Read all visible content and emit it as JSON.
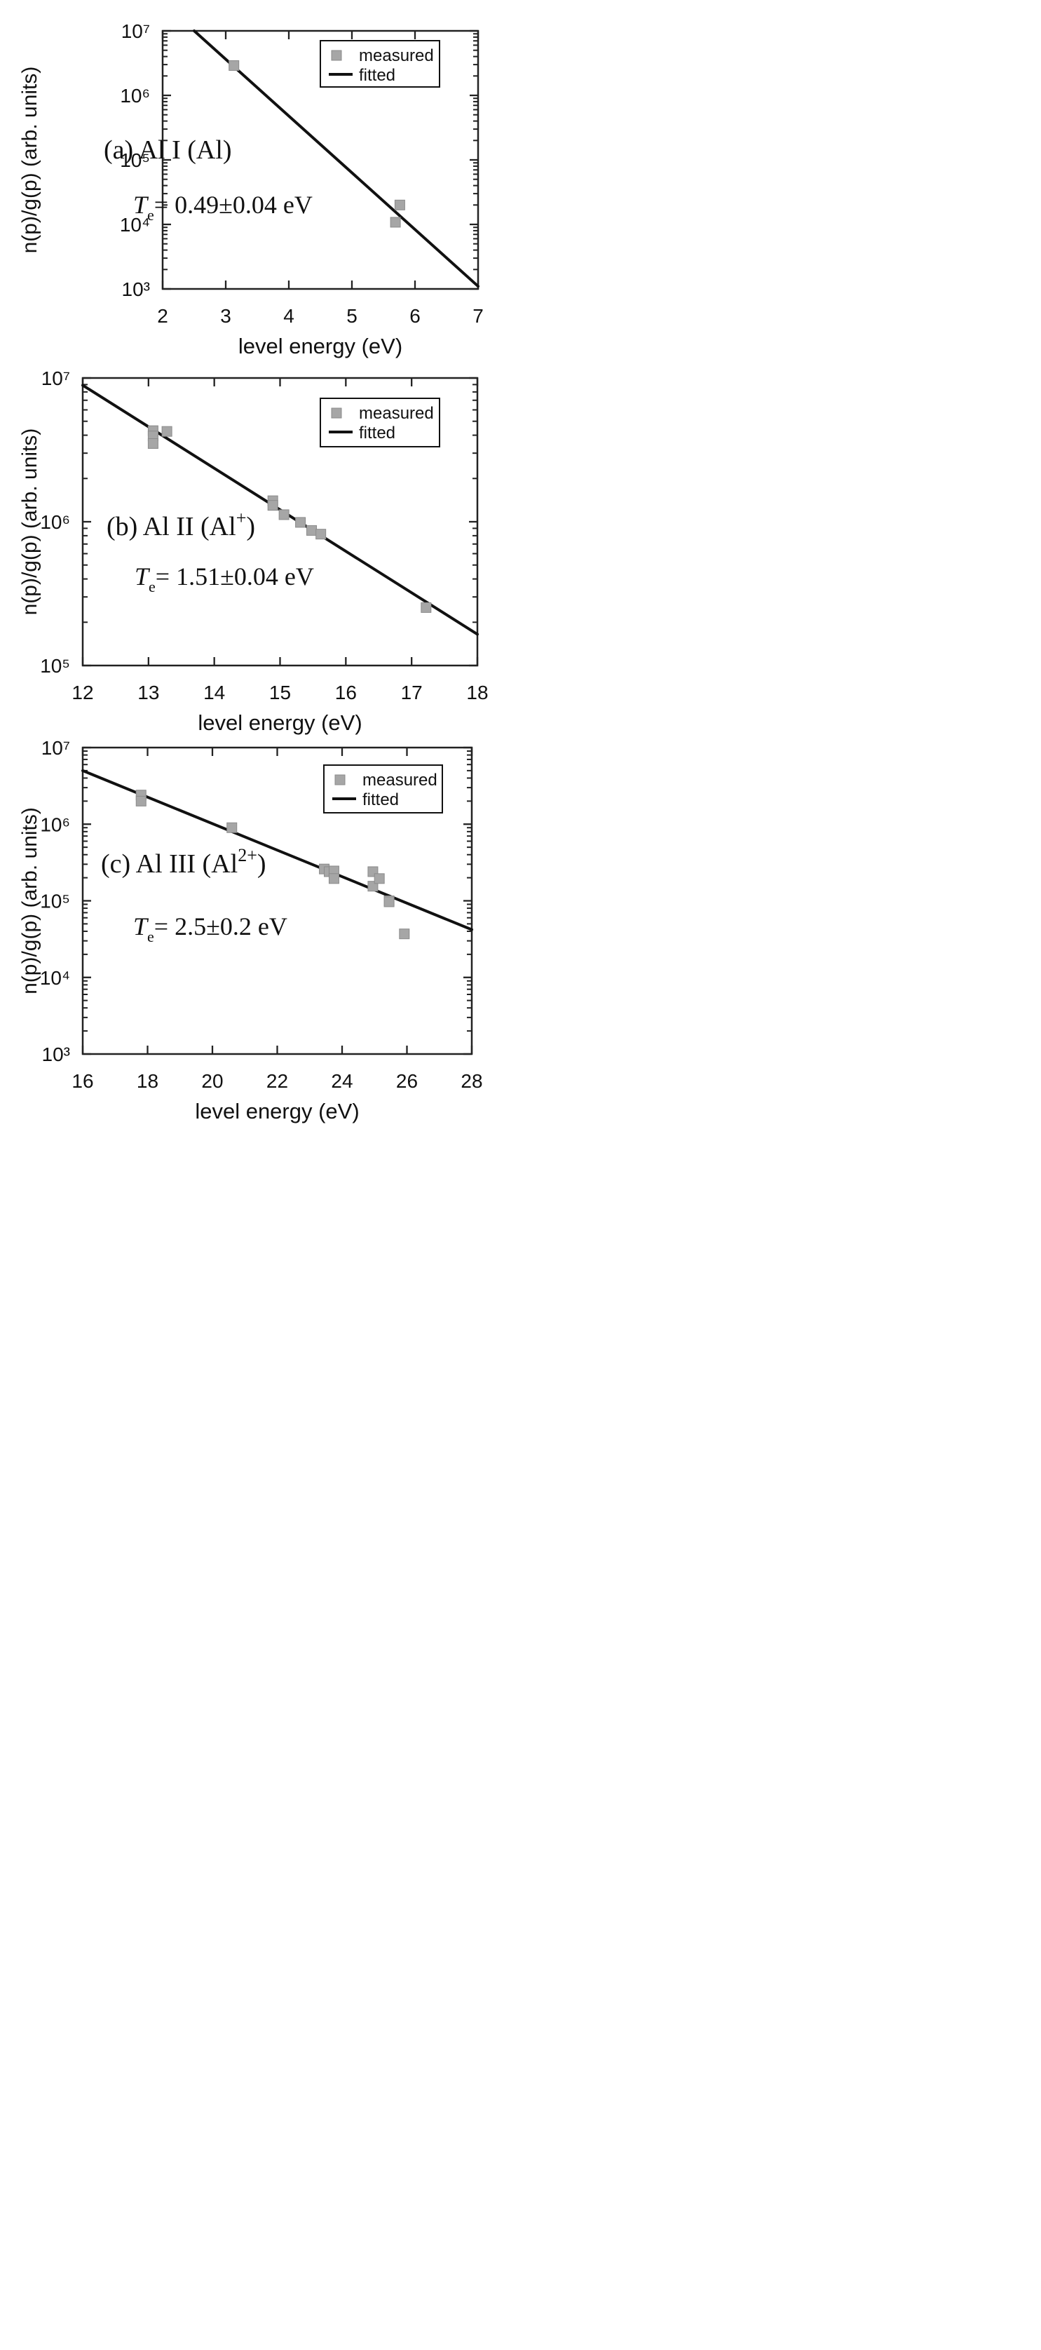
{
  "chart_data": [
    {
      "type": "scatter",
      "panel_label": "(a) Al I  (Al)",
      "temperature_label": "= 0.49±0.04 eV",
      "xlabel": "level energy (eV)",
      "ylabel": "n(p)/g(p) (arb. units)",
      "x_ticks": [
        2,
        3,
        4,
        5,
        6,
        7
      ],
      "y_ticks": [
        1000,
        10000,
        100000,
        1000000,
        10000000
      ],
      "y_tick_labels": [
        "10³",
        "10⁴",
        "10⁵",
        "10⁶",
        "10⁷"
      ],
      "xlim": [
        2,
        7
      ],
      "ylim": [
        1000,
        10000000
      ],
      "y_scale": "log",
      "legend": {
        "placement": "top-right",
        "entries": [
          "measured",
          "fitted"
        ]
      },
      "series": [
        {
          "name": "measured",
          "kind": "scatter",
          "color": "#a6a6a6",
          "marker": "square",
          "points": [
            {
              "x": 3.13,
              "y": 2900000
            },
            {
              "x": 5.69,
              "y": 10800
            },
            {
              "x": 5.76,
              "y": 20000
            }
          ]
        },
        {
          "name": "fitted",
          "kind": "line",
          "color": "#111111",
          "points": [
            {
              "x": 2.5,
              "y": 10000000
            },
            {
              "x": 7.0,
              "y": 1100
            }
          ]
        }
      ]
    },
    {
      "type": "scatter",
      "panel_label": "(b) Al II  (Al",
      "panel_superscript": "+",
      "panel_suffix": ")",
      "temperature_label": "= 1.51±0.04 eV",
      "xlabel": "level energy (eV)",
      "ylabel": "n(p)/g(p) (arb. units)",
      "x_ticks": [
        12,
        13,
        14,
        15,
        16,
        17,
        18
      ],
      "y_ticks": [
        100000,
        1000000,
        10000000
      ],
      "y_tick_labels": [
        "10⁵",
        "10⁶",
        "10⁷"
      ],
      "xlim": [
        12,
        18
      ],
      "ylim": [
        100000,
        10000000
      ],
      "y_scale": "log",
      "legend": {
        "placement": "top-right",
        "entries": [
          "measured",
          "fitted"
        ]
      },
      "series": [
        {
          "name": "measured",
          "kind": "scatter",
          "color": "#a6a6a6",
          "marker": "square",
          "points": [
            {
              "x": 13.07,
              "y": 4300000
            },
            {
              "x": 13.07,
              "y": 3950000
            },
            {
              "x": 13.07,
              "y": 3500000
            },
            {
              "x": 13.28,
              "y": 4250000
            },
            {
              "x": 14.89,
              "y": 1400000
            },
            {
              "x": 14.89,
              "y": 1300000
            },
            {
              "x": 15.06,
              "y": 1120000
            },
            {
              "x": 15.31,
              "y": 990000
            },
            {
              "x": 15.48,
              "y": 870000
            },
            {
              "x": 15.62,
              "y": 820000
            },
            {
              "x": 17.22,
              "y": 253000
            }
          ]
        },
        {
          "name": "fitted",
          "kind": "line",
          "color": "#111111",
          "points": [
            {
              "x": 12.0,
              "y": 8900000
            },
            {
              "x": 18.0,
              "y": 165000
            }
          ]
        }
      ]
    },
    {
      "type": "scatter",
      "panel_label": "(c) Al III (Al",
      "panel_superscript": "2+",
      "panel_suffix": ")",
      "temperature_label": "= 2.5±0.2 eV",
      "xlabel": "level energy (eV)",
      "ylabel": "n(p)/g(p) (arb. units)",
      "x_ticks": [
        16,
        18,
        20,
        22,
        24,
        26,
        28
      ],
      "y_ticks": [
        1000,
        10000,
        100000,
        1000000,
        10000000
      ],
      "y_tick_labels": [
        "10³",
        "10⁴",
        "10⁵",
        "10⁶",
        "10⁷"
      ],
      "xlim": [
        16,
        28
      ],
      "ylim": [
        1000,
        10000000
      ],
      "y_scale": "log",
      "legend": {
        "placement": "top-right",
        "entries": [
          "measured",
          "fitted"
        ]
      },
      "series": [
        {
          "name": "measured",
          "kind": "scatter",
          "color": "#a6a6a6",
          "marker": "square",
          "points": [
            {
              "x": 17.8,
              "y": 2400000
            },
            {
              "x": 17.8,
              "y": 2000000
            },
            {
              "x": 20.6,
              "y": 900000
            },
            {
              "x": 23.45,
              "y": 260000
            },
            {
              "x": 23.6,
              "y": 240000
            },
            {
              "x": 23.75,
              "y": 245000
            },
            {
              "x": 23.75,
              "y": 195000
            },
            {
              "x": 24.95,
              "y": 240000
            },
            {
              "x": 24.95,
              "y": 155000
            },
            {
              "x": 25.15,
              "y": 195000
            },
            {
              "x": 25.45,
              "y": 100000
            },
            {
              "x": 25.45,
              "y": 97000
            },
            {
              "x": 25.92,
              "y": 37000
            }
          ]
        },
        {
          "name": "fitted",
          "kind": "line",
          "color": "#111111",
          "points": [
            {
              "x": 16.0,
              "y": 5000000
            },
            {
              "x": 28.0,
              "y": 42000
            }
          ]
        }
      ]
    }
  ]
}
